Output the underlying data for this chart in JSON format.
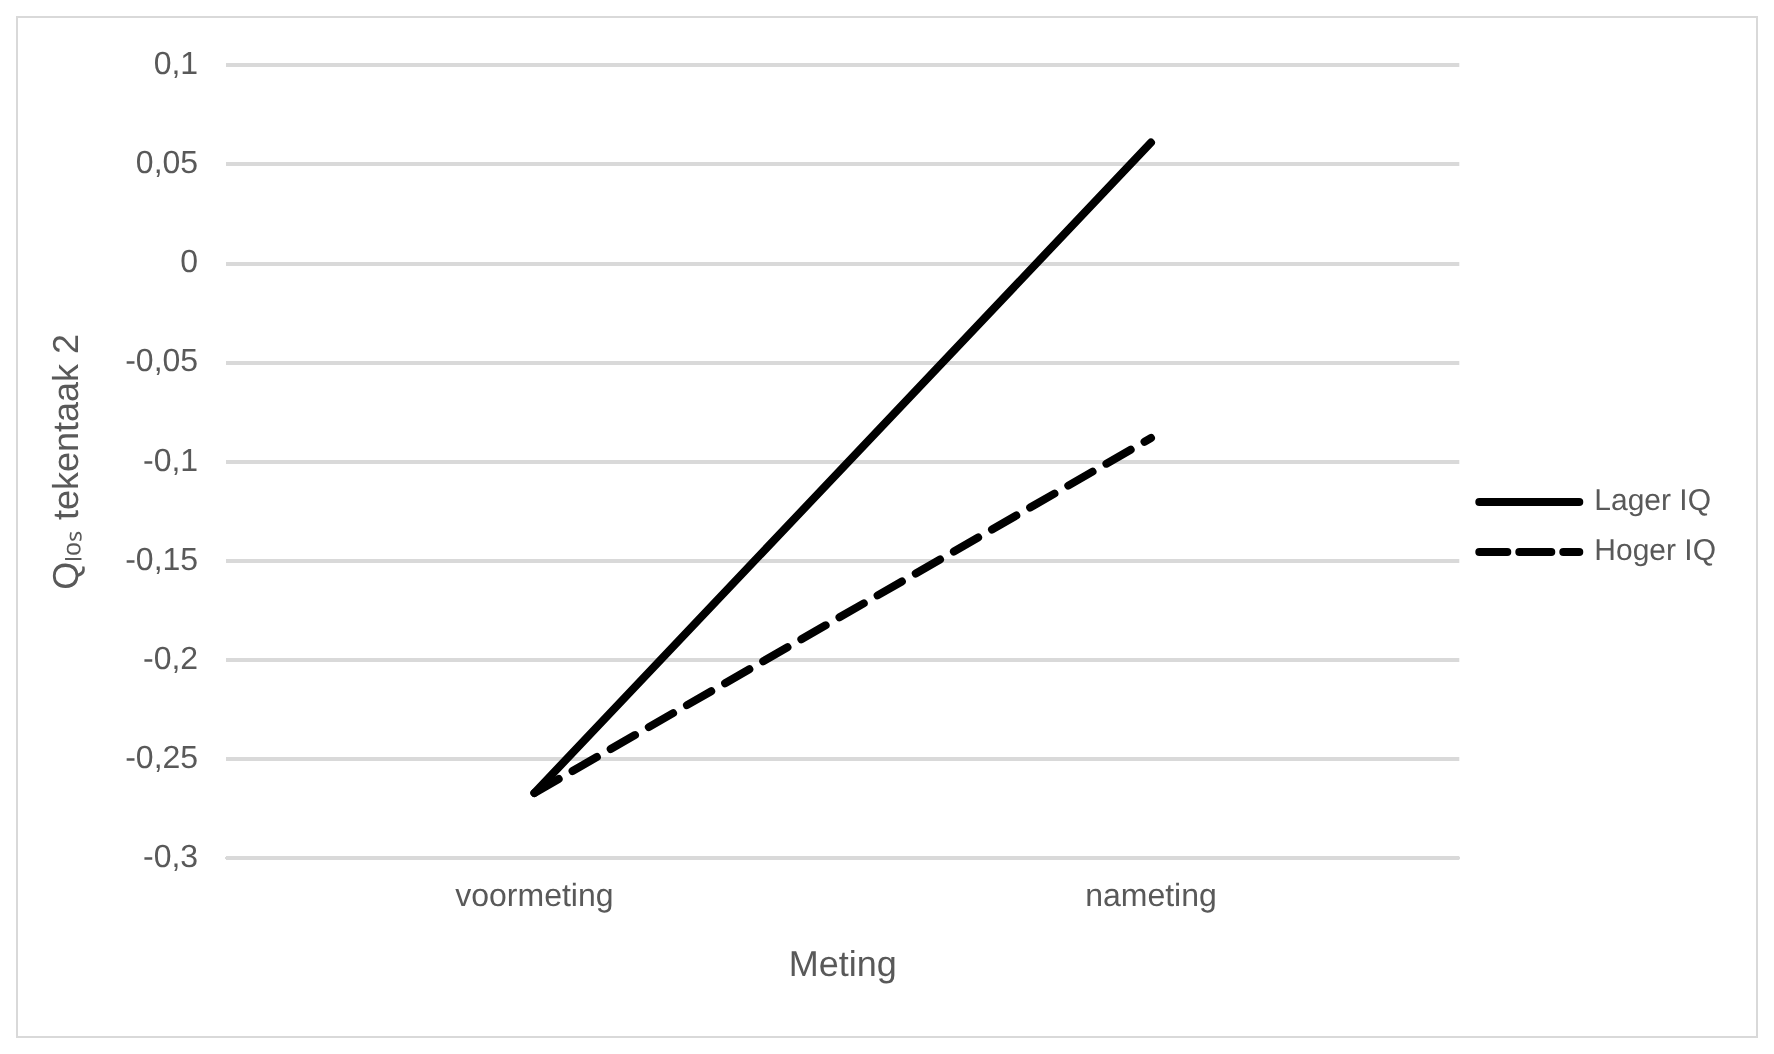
{
  "chart_data": {
    "type": "line",
    "xlabel": "Meting",
    "ylabel": "Qₗₒₛ tekentaak 2",
    "categories": [
      "voormeting",
      "nameting"
    ],
    "series": [
      {
        "name": "Lager IQ",
        "color": "#000000",
        "values": [
          -0.267,
          0.061
        ],
        "line_style": "solid"
      },
      {
        "name": "Hoger IQ",
        "color": "#000000",
        "values": [
          -0.267,
          -0.088
        ],
        "line_style": "dashed"
      }
    ],
    "ylim": [
      -0.3,
      0.1
    ],
    "yticks": [
      {
        "value": -0.3,
        "label": "-0,3"
      },
      {
        "value": -0.25,
        "label": "-0,25"
      },
      {
        "value": -0.2,
        "label": "-0,2"
      },
      {
        "value": -0.15,
        "label": "-0,15"
      },
      {
        "value": -0.1,
        "label": "-0,1"
      },
      {
        "value": -0.05,
        "label": "-0,05"
      },
      {
        "value": 0,
        "label": "0"
      },
      {
        "value": 0.05,
        "label": "0,05"
      },
      {
        "value": 0.1,
        "label": "0,1"
      }
    ],
    "grid": "y",
    "legend": "right",
    "marker": "none"
  }
}
